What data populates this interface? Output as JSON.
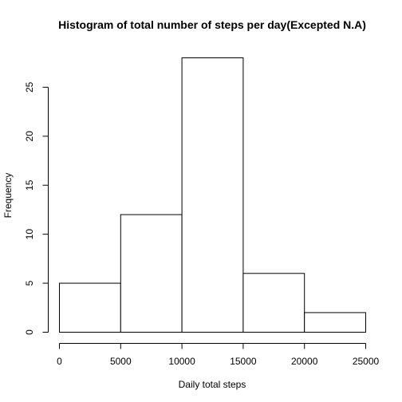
{
  "chart_data": {
    "type": "bar",
    "title": "Histogram of total number of steps per day(Excepted N.A)",
    "xlabel": "Daily total steps",
    "ylabel": "Frequency",
    "bins": [
      {
        "start": 0,
        "end": 5000,
        "count": 5
      },
      {
        "start": 5000,
        "end": 10000,
        "count": 12
      },
      {
        "start": 10000,
        "end": 15000,
        "count": 28
      },
      {
        "start": 15000,
        "end": 20000,
        "count": 6
      },
      {
        "start": 20000,
        "end": 25000,
        "count": 2
      }
    ],
    "xlim": [
      0,
      25000
    ],
    "ylim": [
      0,
      28
    ],
    "x_ticks": [
      0,
      5000,
      10000,
      15000,
      20000,
      25000
    ],
    "y_ticks": [
      0,
      5,
      10,
      15,
      20,
      25
    ],
    "grid": false,
    "legend": "none",
    "colors": {
      "bar_fill": "#ffffff",
      "bar_stroke": "#000000"
    }
  }
}
